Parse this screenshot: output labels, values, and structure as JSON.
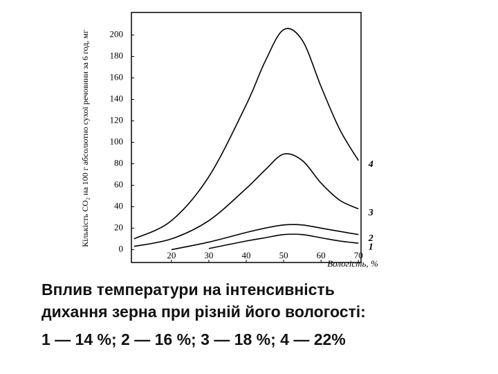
{
  "chart_data": {
    "type": "line",
    "y_label": "Кількість CO₂ на 100 г абсолютно сухої речовини за 6 год, мг",
    "x_label": "Вологість, %",
    "x": [
      10,
      20,
      30,
      40,
      45,
      50,
      55,
      60,
      65,
      70
    ],
    "series": [
      {
        "name": "4",
        "color": "#000000",
        "values": [
          10,
          27,
          68,
          135,
          175,
          205,
          195,
          152,
          112,
          83
        ]
      },
      {
        "name": "3",
        "color": "#000000",
        "values": [
          3,
          10,
          27,
          57,
          74,
          89,
          83,
          62,
          46,
          38
        ]
      },
      {
        "name": "2",
        "color": "#000000",
        "values": [
          null,
          0,
          7,
          16,
          20,
          23,
          23,
          20,
          17,
          14
        ]
      },
      {
        "name": "1",
        "color": "#000000",
        "values": [
          null,
          null,
          1,
          8,
          11,
          14,
          14,
          11,
          8,
          6
        ]
      }
    ],
    "xlim": [
      9.3,
      70.7
    ],
    "ylim": [
      -12,
      221
    ],
    "xticks": [
      20,
      30,
      40,
      50,
      60,
      70
    ],
    "yticks": [
      0,
      20,
      40,
      60,
      80,
      100,
      120,
      140,
      160,
      180,
      200
    ],
    "caption": [
      "Вплив температури на інтенсивність",
      "дихання зерна при різній його вологості:",
      "1 — 14 %; 2 — 16 %; 3 — 18 %; 4 — 22%"
    ]
  }
}
